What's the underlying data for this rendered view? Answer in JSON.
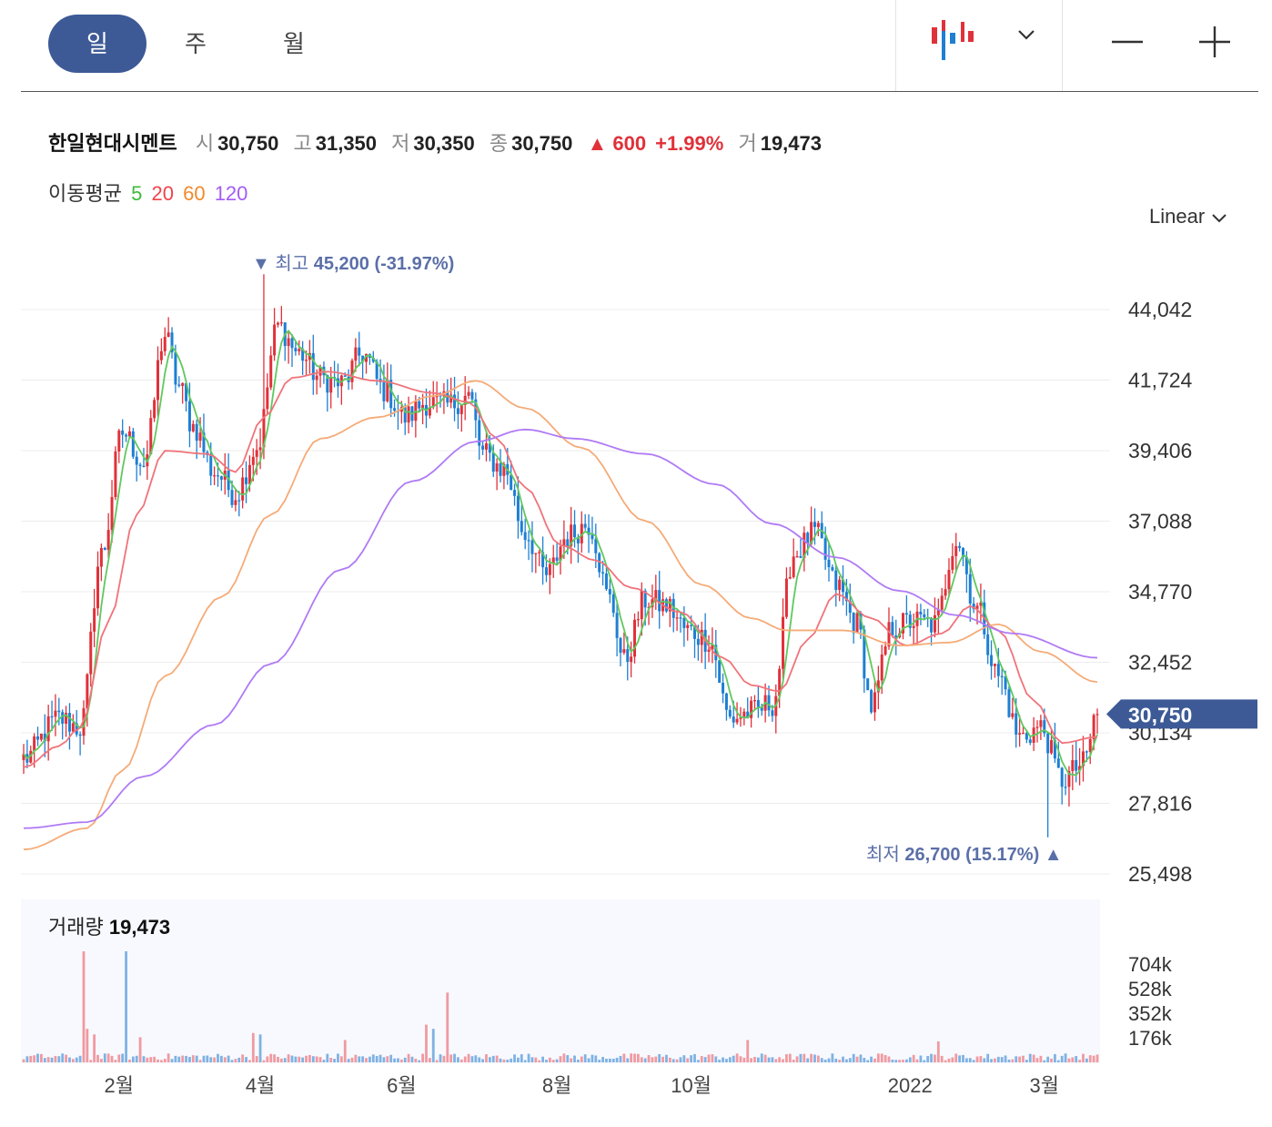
{
  "toolbar": {
    "periods": [
      {
        "label": "일",
        "active": true
      },
      {
        "label": "주",
        "active": false
      },
      {
        "label": "월",
        "active": false
      }
    ],
    "chart_type_icon": "candlestick-icon",
    "dropdown_icon": "chevron-down-icon",
    "zoom_out_icon": "minus-icon",
    "zoom_in_icon": "plus-icon"
  },
  "stock": {
    "name": "한일현대시멘트",
    "open_label": "시",
    "open": "30,750",
    "high_label": "고",
    "high": "31,350",
    "low_label": "저",
    "low": "30,350",
    "close_label": "종",
    "close": "30,750",
    "change": "▲ 600",
    "change_pct": "+1.99%",
    "volume_label": "거",
    "volume": "19,473"
  },
  "ma_legend": {
    "label": "이동평균",
    "items": [
      {
        "period": "5",
        "color": "#3dbb3d"
      },
      {
        "period": "20",
        "color": "#f0434b"
      },
      {
        "period": "60",
        "color": "#f08a2c"
      },
      {
        "period": "120",
        "color": "#a35cf5"
      }
    ]
  },
  "scale_selector": {
    "label": "Linear",
    "icon": "chevron-down-icon"
  },
  "chart_data": {
    "type": "candlestick",
    "up_color": "#e0313a",
    "down_color": "#1e7fd3",
    "y_ticks": [
      "44,042",
      "41,724",
      "39,406",
      "37,088",
      "34,770",
      "32,452",
      "30,134",
      "27,816",
      "25,498"
    ],
    "y_tick_values": [
      44042,
      41724,
      39406,
      37088,
      34770,
      32452,
      30134,
      27816,
      25498
    ],
    "ylim": [
      25498,
      44042
    ],
    "x_ticks": [
      "2월",
      "4월",
      "6월",
      "8월",
      "10월",
      "2022",
      "3월"
    ],
    "current_price_label": "30,750",
    "current_price": 30750,
    "max_annotation": {
      "prefix": "▼",
      "label": "최고",
      "value": "45,200 (-31.97%)"
    },
    "min_annotation": {
      "label": "최저",
      "value": "26,700 (15.17%)",
      "suffix": "▲"
    },
    "price_anchors": [
      {
        "t": 0,
        "p": 29300
      },
      {
        "t": 10,
        "p": 30600
      },
      {
        "t": 16,
        "p": 30300
      },
      {
        "t": 22,
        "p": 36000
      },
      {
        "t": 28,
        "p": 40000
      },
      {
        "t": 34,
        "p": 39000
      },
      {
        "t": 40,
        "p": 43200
      },
      {
        "t": 44,
        "p": 41500
      },
      {
        "t": 48,
        "p": 40200
      },
      {
        "t": 54,
        "p": 38700
      },
      {
        "t": 60,
        "p": 38000
      },
      {
        "t": 66,
        "p": 39500
      },
      {
        "t": 72,
        "p": 43500
      },
      {
        "t": 78,
        "p": 42600
      },
      {
        "t": 84,
        "p": 41800
      },
      {
        "t": 90,
        "p": 41600
      },
      {
        "t": 96,
        "p": 42600
      },
      {
        "t": 102,
        "p": 41400
      },
      {
        "t": 108,
        "p": 40500
      },
      {
        "t": 114,
        "p": 41000
      },
      {
        "t": 120,
        "p": 40900
      },
      {
        "t": 126,
        "p": 41200
      },
      {
        "t": 130,
        "p": 39300
      },
      {
        "t": 136,
        "p": 38800
      },
      {
        "t": 142,
        "p": 36700
      },
      {
        "t": 148,
        "p": 35300
      },
      {
        "t": 154,
        "p": 36600
      },
      {
        "t": 160,
        "p": 37000
      },
      {
        "t": 166,
        "p": 34500
      },
      {
        "t": 170,
        "p": 32500
      },
      {
        "t": 176,
        "p": 34500
      },
      {
        "t": 182,
        "p": 34300
      },
      {
        "t": 188,
        "p": 33500
      },
      {
        "t": 194,
        "p": 33200
      },
      {
        "t": 200,
        "p": 30600
      },
      {
        "t": 206,
        "p": 30800
      },
      {
        "t": 212,
        "p": 31100
      },
      {
        "t": 218,
        "p": 36000
      },
      {
        "t": 224,
        "p": 36700
      },
      {
        "t": 230,
        "p": 35000
      },
      {
        "t": 236,
        "p": 33700
      },
      {
        "t": 240,
        "p": 31000
      },
      {
        "t": 246,
        "p": 33600
      },
      {
        "t": 252,
        "p": 33800
      },
      {
        "t": 258,
        "p": 33700
      },
      {
        "t": 264,
        "p": 36500
      },
      {
        "t": 270,
        "p": 34200
      },
      {
        "t": 276,
        "p": 32000
      },
      {
        "t": 282,
        "p": 30000
      },
      {
        "t": 288,
        "p": 30300
      },
      {
        "t": 294,
        "p": 28600
      },
      {
        "t": 300,
        "p": 29100
      },
      {
        "t": 304,
        "p": 30800
      }
    ],
    "ma_lines": [
      {
        "period": 5,
        "color": "#5fc85f",
        "lag": 2.5,
        "samples": []
      },
      {
        "period": 20,
        "color": "#f0737a",
        "anchors": [
          {
            "t": 0,
            "p": 29000
          },
          {
            "t": 10,
            "p": 29700
          },
          {
            "t": 16,
            "p": 30300
          },
          {
            "t": 24,
            "p": 33800
          },
          {
            "t": 32,
            "p": 37300
          },
          {
            "t": 40,
            "p": 39400
          },
          {
            "t": 52,
            "p": 39300
          },
          {
            "t": 60,
            "p": 38700
          },
          {
            "t": 68,
            "p": 40500
          },
          {
            "t": 76,
            "p": 41800
          },
          {
            "t": 86,
            "p": 42000
          },
          {
            "t": 100,
            "p": 41700
          },
          {
            "t": 116,
            "p": 41300
          },
          {
            "t": 126,
            "p": 41000
          },
          {
            "t": 134,
            "p": 39800
          },
          {
            "t": 142,
            "p": 38200
          },
          {
            "t": 152,
            "p": 36300
          },
          {
            "t": 162,
            "p": 35800
          },
          {
            "t": 172,
            "p": 34900
          },
          {
            "t": 186,
            "p": 34100
          },
          {
            "t": 198,
            "p": 32600
          },
          {
            "t": 206,
            "p": 31700
          },
          {
            "t": 214,
            "p": 31500
          },
          {
            "t": 222,
            "p": 33200
          },
          {
            "t": 230,
            "p": 34700
          },
          {
            "t": 240,
            "p": 33900
          },
          {
            "t": 250,
            "p": 33000
          },
          {
            "t": 260,
            "p": 33400
          },
          {
            "t": 268,
            "p": 34300
          },
          {
            "t": 276,
            "p": 33500
          },
          {
            "t": 286,
            "p": 31200
          },
          {
            "t": 294,
            "p": 29800
          },
          {
            "t": 304,
            "p": 30000
          }
        ]
      },
      {
        "period": 60,
        "color": "#f5ab78",
        "anchors": [
          {
            "t": 0,
            "p": 26300
          },
          {
            "t": 18,
            "p": 27000
          },
          {
            "t": 28,
            "p": 28900
          },
          {
            "t": 40,
            "p": 32000
          },
          {
            "t": 56,
            "p": 34600
          },
          {
            "t": 70,
            "p": 37300
          },
          {
            "t": 84,
            "p": 39800
          },
          {
            "t": 100,
            "p": 40500
          },
          {
            "t": 116,
            "p": 41200
          },
          {
            "t": 128,
            "p": 41700
          },
          {
            "t": 142,
            "p": 40800
          },
          {
            "t": 158,
            "p": 39500
          },
          {
            "t": 176,
            "p": 37100
          },
          {
            "t": 192,
            "p": 35000
          },
          {
            "t": 206,
            "p": 33900
          },
          {
            "t": 216,
            "p": 33500
          },
          {
            "t": 232,
            "p": 33500
          },
          {
            "t": 248,
            "p": 33000
          },
          {
            "t": 262,
            "p": 33100
          },
          {
            "t": 276,
            "p": 33700
          },
          {
            "t": 288,
            "p": 32800
          },
          {
            "t": 304,
            "p": 31800
          }
        ]
      },
      {
        "period": 120,
        "color": "#b07af5",
        "anchors": [
          {
            "t": 0,
            "p": 27000
          },
          {
            "t": 18,
            "p": 27200
          },
          {
            "t": 34,
            "p": 28700
          },
          {
            "t": 54,
            "p": 30400
          },
          {
            "t": 70,
            "p": 32400
          },
          {
            "t": 90,
            "p": 35500
          },
          {
            "t": 110,
            "p": 38400
          },
          {
            "t": 128,
            "p": 39700
          },
          {
            "t": 142,
            "p": 40100
          },
          {
            "t": 156,
            "p": 39800
          },
          {
            "t": 176,
            "p": 39300
          },
          {
            "t": 196,
            "p": 38300
          },
          {
            "t": 212,
            "p": 37000
          },
          {
            "t": 230,
            "p": 35900
          },
          {
            "t": 248,
            "p": 34800
          },
          {
            "t": 264,
            "p": 34000
          },
          {
            "t": 280,
            "p": 33400
          },
          {
            "t": 304,
            "p": 32600
          }
        ]
      }
    ],
    "extremes": {
      "max": {
        "t": 68,
        "p": 45200
      },
      "min": {
        "t": 290,
        "p": 26700
      }
    },
    "x_tick_positions": [
      27,
      67,
      107,
      151,
      189,
      251,
      289
    ],
    "volume": {
      "title": "거래량",
      "value": "19,473",
      "y_ticks": [
        "704k",
        "528k",
        "352k",
        "176k"
      ],
      "y_tick_values": [
        704000,
        528000,
        352000,
        176000
      ],
      "max": 880000,
      "spikes": [
        {
          "t": 17,
          "v": 920000,
          "up": true
        },
        {
          "t": 18,
          "v": 240000,
          "up": true
        },
        {
          "t": 20,
          "v": 200000,
          "up": true
        },
        {
          "t": 29,
          "v": 860000,
          "up": false
        },
        {
          "t": 33,
          "v": 180000,
          "up": true
        },
        {
          "t": 65,
          "v": 210000,
          "up": true
        },
        {
          "t": 67,
          "v": 200000,
          "up": false
        },
        {
          "t": 91,
          "v": 160000,
          "up": true
        },
        {
          "t": 114,
          "v": 270000,
          "up": true
        },
        {
          "t": 116,
          "v": 240000,
          "up": false
        },
        {
          "t": 120,
          "v": 500000,
          "up": true
        },
        {
          "t": 205,
          "v": 160000,
          "up": true
        },
        {
          "t": 259,
          "v": 150000,
          "up": true
        }
      ]
    }
  }
}
